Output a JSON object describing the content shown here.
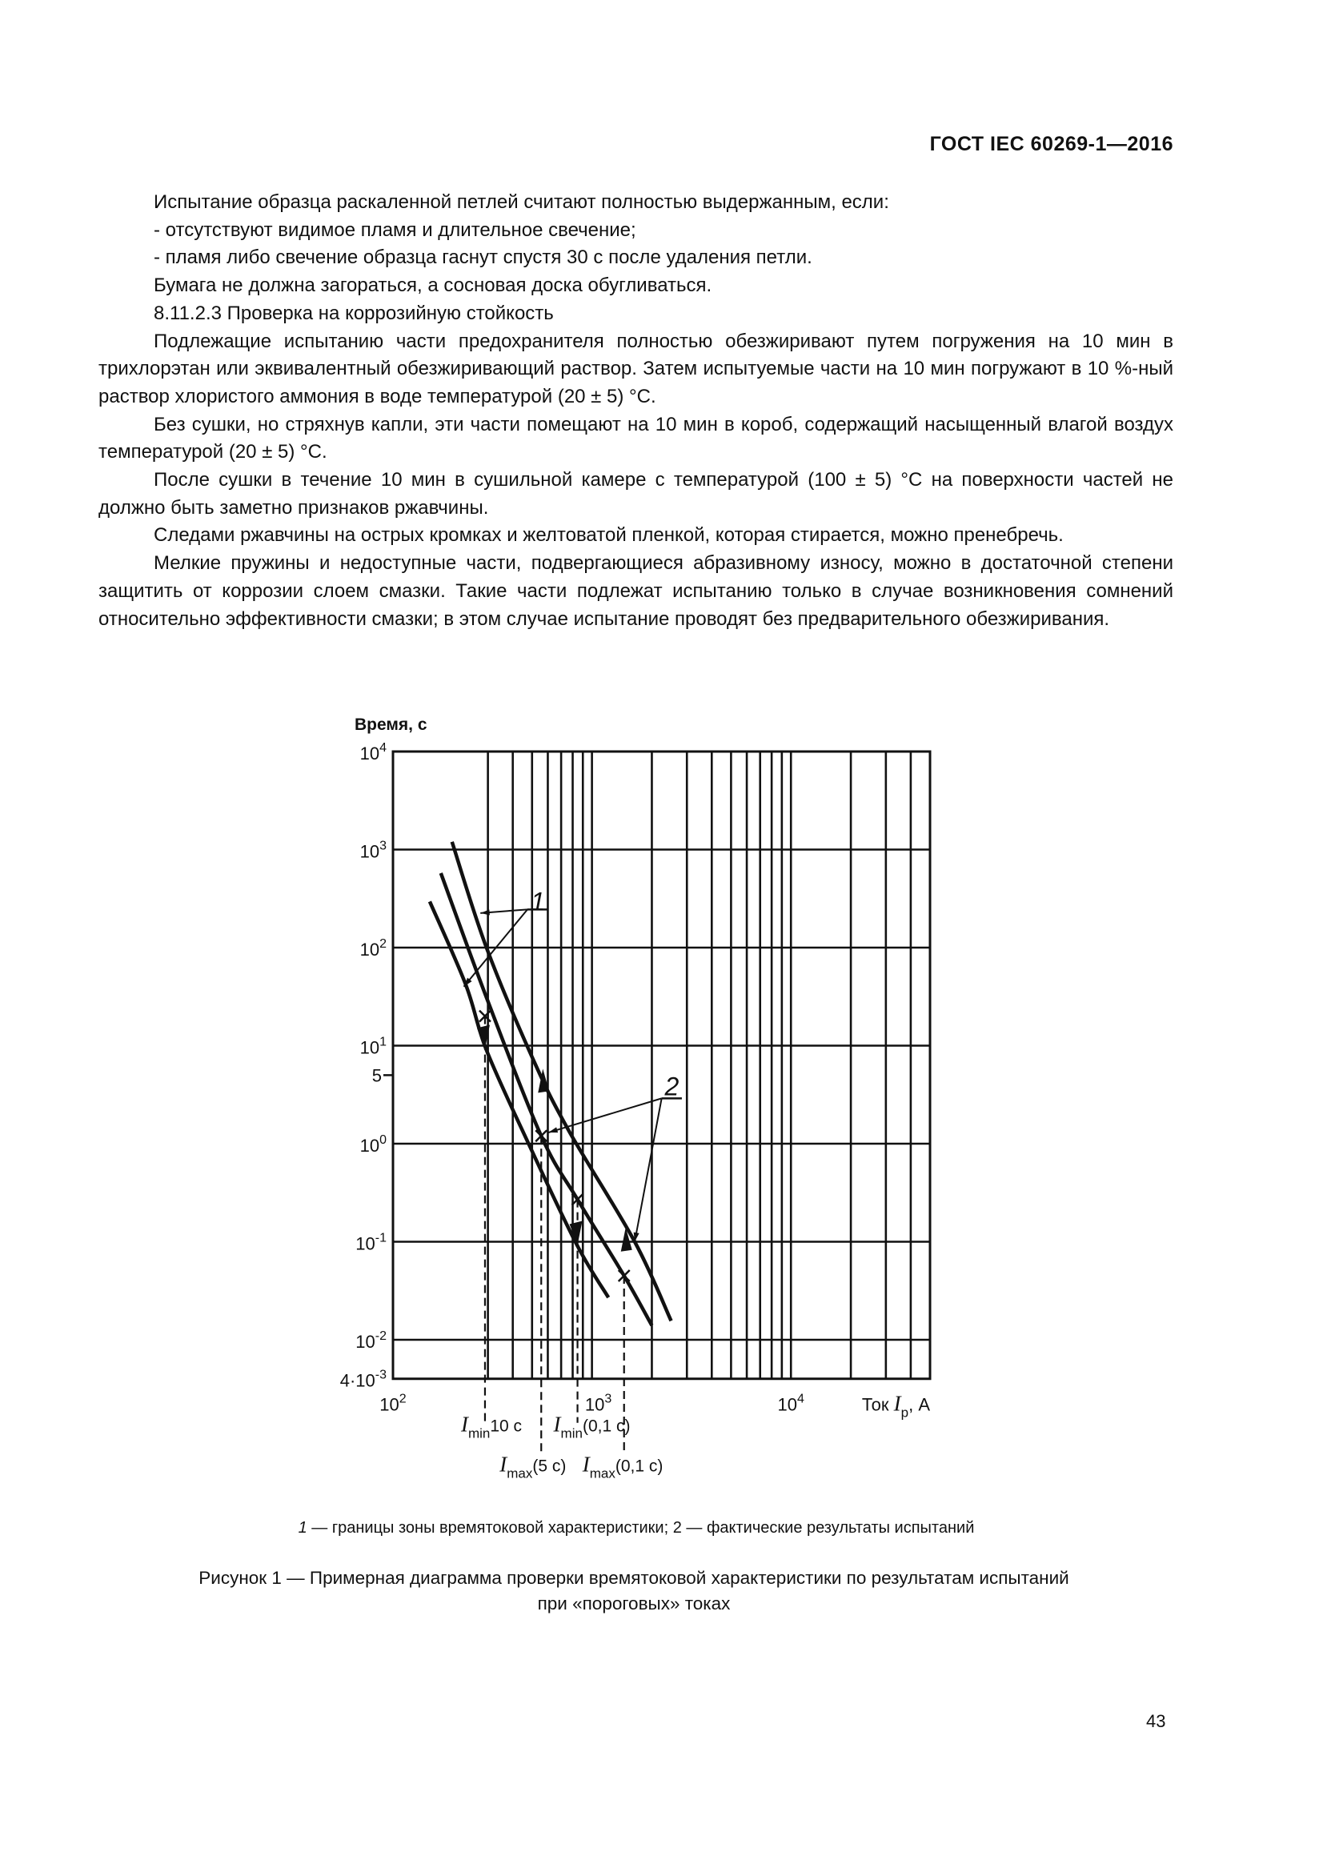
{
  "header": {
    "doc_code": "ГОСТ IEC 60269-1—2016"
  },
  "body": {
    "paragraphs": [
      "Испытание образца раскаленной петлей считают полностью выдержанным, если:",
      "-  отсутствуют видимое пламя и длительное свечение;",
      "-  пламя либо свечение образца гаснут спустя 30 с после удаления петли.",
      "Бумага не должна загораться, а сосновая доска обугливаться.",
      "8.11.2.3  Проверка на коррозийную стойкость",
      "Подлежащие испытанию части предохранителя полностью обезжиривают путем погружения на 10 мин в трихлорэтан или эквивалентный обезжиривающий раствор. Затем испытуемые части на 10 мин погружают в 10 %-ный раствор хлористого аммония в воде температурой (20 ± 5) °С.",
      "Без сушки, но стряхнув капли, эти части помещают на 10 мин в короб, содержащий насыщенный влагой воздух температурой (20 ± 5) °С.",
      "После сушки в течение 10 мин в сушильной камере с температурой (100 ± 5) °С на поверхности частей не должно быть заметно признаков ржавчины.",
      "Следами ржавчины на острых кромках и желтоватой пленкой, которая стирается, можно пренебречь.",
      "Мелкие пружины и недоступные части, подвергающиеся абразивному износу, можно в достаточной степени защитить от коррозии слоем смазки. Такие части подлежат испытанию только в случае возникновения сомнений относительно эффективности смазки; в этом случае испытание проводят без предварительного обезжиривания."
    ]
  },
  "chart_data": {
    "type": "line",
    "ylabel": "Время, с",
    "xlabel": {
      "text": "Ток ",
      "var": "I",
      "sub": "p",
      "unit": ", А"
    },
    "x_scale": "log",
    "y_scale": "log",
    "xlim": [
      100,
      50000
    ],
    "ylim": [
      0.004,
      10000
    ],
    "grid": true,
    "x_gridlines": [
      300,
      400,
      500,
      600,
      700,
      800,
      900,
      1000,
      2000,
      3000,
      4000,
      5000,
      6000,
      7000,
      8000,
      9000,
      10000,
      20000,
      30000,
      40000,
      50000
    ],
    "y_gridlines": [
      0.01,
      0.1,
      1,
      10,
      100,
      1000,
      10000
    ],
    "x_ticks": [
      {
        "value": 100,
        "base": "10",
        "sup": "2"
      },
      {
        "value": 1000,
        "base": "10",
        "sup": "3"
      },
      {
        "value": 10000,
        "base": "10",
        "sup": "4"
      }
    ],
    "y_ticks": [
      {
        "value": 10000,
        "base": "10",
        "sup": "4"
      },
      {
        "value": 1000,
        "base": "10",
        "sup": "3"
      },
      {
        "value": 100,
        "base": "10",
        "sup": "2"
      },
      {
        "value": 10,
        "base": "10",
        "sup": "1"
      },
      {
        "value": 5,
        "base": "5",
        "sup": ""
      },
      {
        "value": 1,
        "base": "10",
        "sup": "0"
      },
      {
        "value": 0.1,
        "base": "10",
        "sup": "-1"
      },
      {
        "value": 0.01,
        "base": "10",
        "sup": "-2"
      },
      {
        "value": 0.004,
        "base": "4·10",
        "sup": "-3"
      }
    ],
    "series": [
      {
        "name": "1",
        "role": "boundary-upper",
        "points": [
          [
            198,
            1200
          ],
          [
            295,
            100
          ],
          [
            510,
            7
          ],
          [
            766,
            1.35
          ],
          [
            1640,
            0.1
          ],
          [
            2500,
            0.0156
          ]
        ]
      },
      {
        "name": "2",
        "role": "test-results",
        "points": [
          [
            174,
            575
          ],
          [
            295,
            31
          ],
          [
            556,
            1.2
          ],
          [
            846,
            0.27
          ],
          [
            1450,
            0.045
          ],
          [
            2000,
            0.014
          ]
        ]
      },
      {
        "name": "1",
        "role": "boundary-lower",
        "points": [
          [
            153,
            295
          ],
          [
            232,
            42
          ],
          [
            295,
            9
          ],
          [
            475,
            1.05
          ],
          [
            840,
            0.093
          ],
          [
            1210,
            0.027
          ]
        ]
      }
    ],
    "test_points": [
      [
        290,
        20
      ],
      [
        556,
        1.2
      ],
      [
        846,
        0.27
      ],
      [
        1450,
        0.045
      ]
    ],
    "arrows": [
      {
        "at": [
          290,
          10
        ],
        "dir": "down"
      },
      {
        "at": [
          556,
          5
        ],
        "dir": "up"
      },
      {
        "at": [
          846,
          0.1
        ],
        "dir": "down"
      },
      {
        "at": [
          1450,
          0.12
        ],
        "dir": "up"
      }
    ],
    "markers": [
      {
        "current": 290,
        "from_time": 20,
        "var": "I",
        "sub": "min",
        "label": "10 с",
        "row": 1
      },
      {
        "current": 556,
        "from_time": 1.2,
        "var": "I",
        "sub": "max",
        "label": "(5 с)",
        "row": 2
      },
      {
        "current": 846,
        "from_time": 0.27,
        "var": "I",
        "sub": "min",
        "label": "(0,1 с)",
        "row": 1
      },
      {
        "current": 1450,
        "from_time": 0.045,
        "var": "I",
        "sub": "max",
        "label": "(0,1 с)",
        "row": 2
      }
    ],
    "callouts": [
      {
        "label": "1",
        "anchor": [
          535,
          300
        ],
        "shelf": [
          [
            474,
            245
          ],
          [
            600,
            245
          ]
        ],
        "targets": [
          [
            275,
            225
          ],
          [
            227,
            40
          ]
        ]
      },
      {
        "label": "2",
        "anchor": [
          2520,
          3.9
        ],
        "shelf": [
          [
            2240,
            2.9
          ],
          [
            2830,
            2.9
          ]
        ],
        "targets": [
          [
            604,
            1.3
          ],
          [
            1640,
            0.1
          ]
        ]
      }
    ]
  },
  "figure": {
    "legend": {
      "k1": "1",
      "t1": " — границы зоны времятоковой характеристики; ",
      "k2": "2",
      "t2": " — фактические результаты испытаний"
    },
    "caption_line1": "Рисунок  1 — Примерная диаграмма проверки времятоковой характеристики по результатам испытаний",
    "caption_line2": "при «пороговых» токах"
  },
  "page_number": "43"
}
